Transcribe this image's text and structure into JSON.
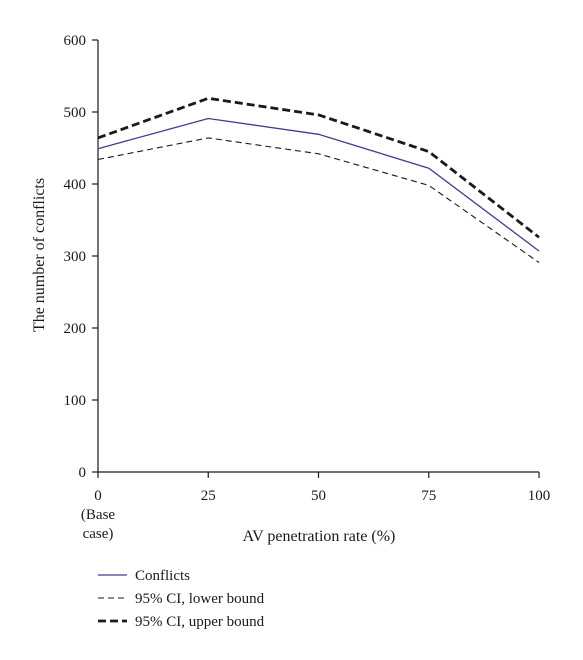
{
  "chart_data": {
    "type": "line",
    "xlabel": "AV penetration rate (%)",
    "ylabel": "The number of conflicts",
    "x": [
      0,
      25,
      50,
      75,
      100
    ],
    "x_tick_labels": [
      {
        "value": 0,
        "lines": [
          "0",
          "(Base",
          "case)"
        ]
      },
      {
        "value": 25,
        "lines": [
          "25"
        ]
      },
      {
        "value": 50,
        "lines": [
          "50"
        ]
      },
      {
        "value": 75,
        "lines": [
          "75"
        ]
      },
      {
        "value": 100,
        "lines": [
          "100"
        ]
      }
    ],
    "xlim": [
      0,
      100
    ],
    "ylim": [
      0,
      600
    ],
    "y_ticks": [
      0,
      100,
      200,
      300,
      400,
      500,
      600
    ],
    "grid": false,
    "legend_position": "bottom-left, below plot",
    "series": [
      {
        "name": "Conflicts",
        "values": [
          449,
          491,
          469,
          422,
          307
        ],
        "color": "#3c3f8f",
        "style": "solid"
      },
      {
        "name": "95% CI, lower bound",
        "values": [
          434,
          464,
          442,
          398,
          291
        ],
        "color": "#1a1a1a",
        "style": "dashed"
      },
      {
        "name": "95% CI, upper bound",
        "values": [
          464,
          519,
          496,
          445,
          326
        ],
        "color": "#1a1a1a",
        "style": "dashed-bold"
      }
    ]
  }
}
